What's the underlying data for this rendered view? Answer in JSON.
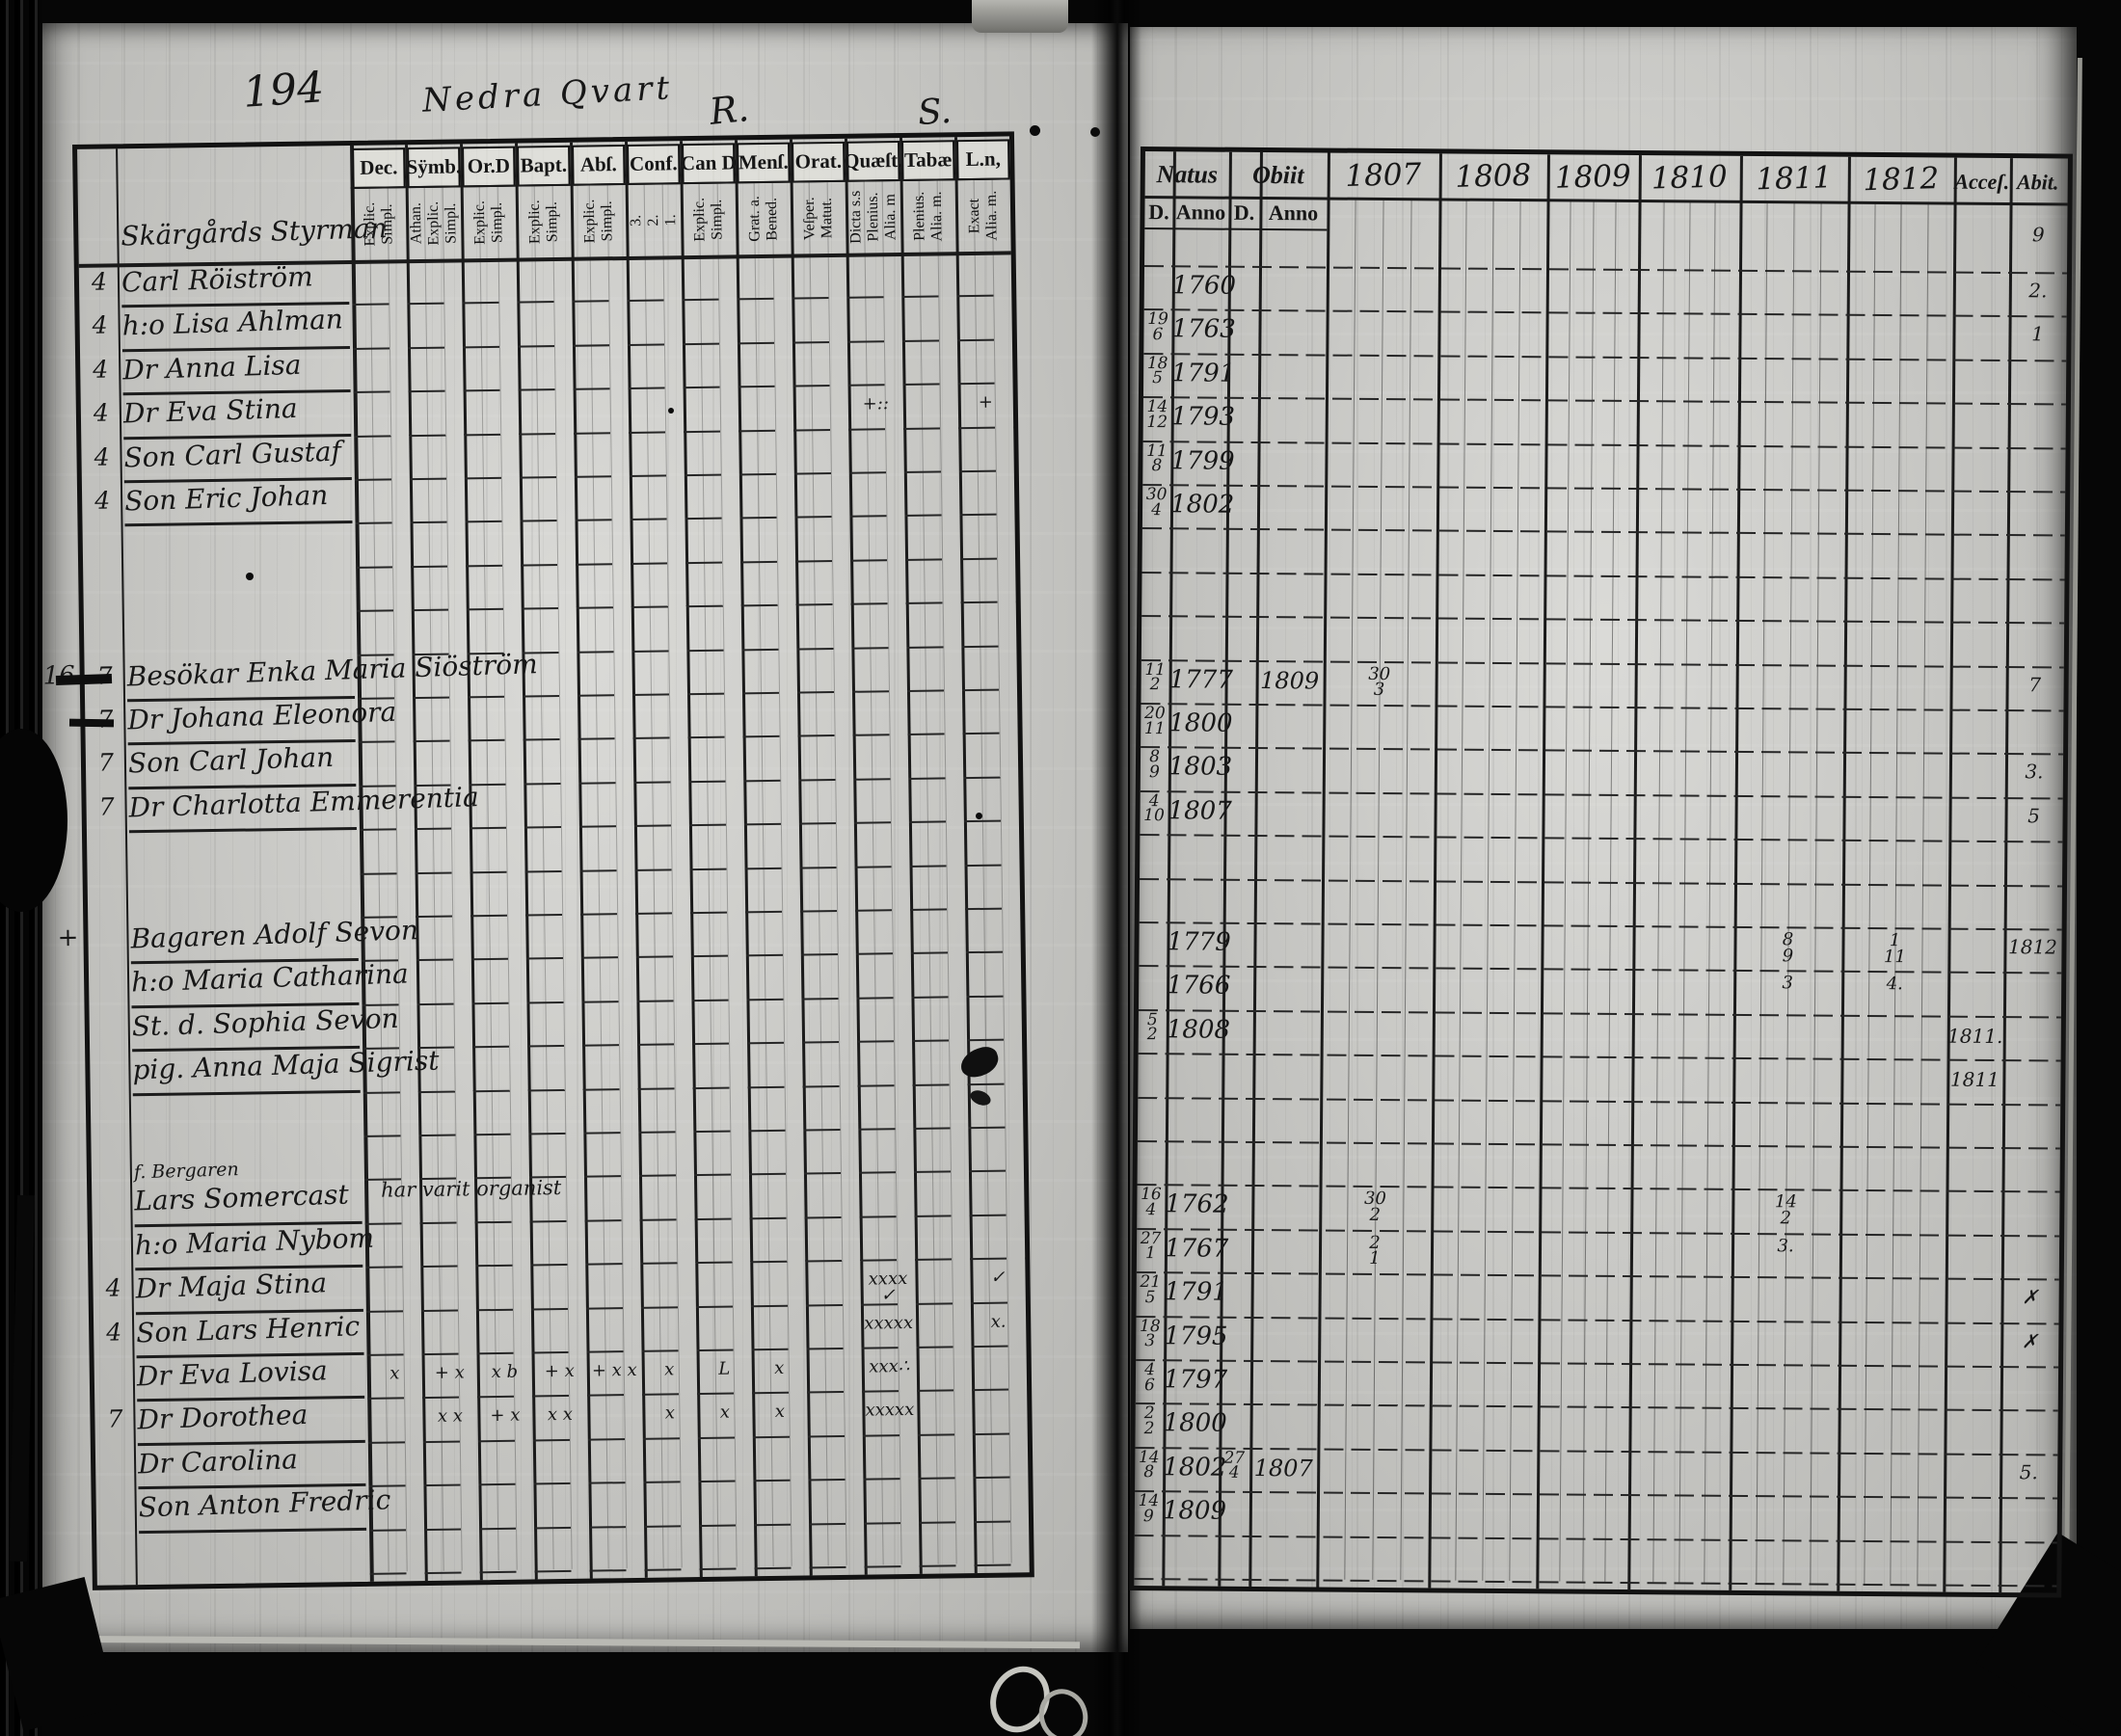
{
  "page": {
    "number": "194",
    "title_script": "Nedra Qvart",
    "mark_r": "R.",
    "mark_s": "S.",
    "ink_color": "#171717",
    "paper_color": "#d0d0cc"
  },
  "left_table": {
    "columns": [
      {
        "label": "Dec.",
        "sub": [
          "Explic.",
          "Simpl."
        ]
      },
      {
        "label": "Sÿmb.",
        "sub": [
          "Athan.",
          "Explic.",
          "Simpl."
        ]
      },
      {
        "label": "Or.D",
        "sub": [
          "Explic.",
          "Simpl."
        ]
      },
      {
        "label": "Bapt.",
        "sub": [
          "Explic.",
          "Simpl."
        ]
      },
      {
        "label": "Abſ.",
        "sub": [
          "Explic.",
          "Simpl."
        ]
      },
      {
        "label": "Conf.",
        "sub": [
          "3.",
          "2.",
          "1."
        ]
      },
      {
        "label": "Can D",
        "sub": [
          "Explic.",
          "Simpl."
        ]
      },
      {
        "label": "Menſ.",
        "sub": [
          "Grat. a.",
          "Bened."
        ]
      },
      {
        "label": "Orat.",
        "sub": [
          "Veſper.",
          "Matut."
        ]
      },
      {
        "label": "Quæſt.",
        "sub": [
          "Dicta s.s",
          "Plenius.",
          "Alia. m"
        ]
      },
      {
        "label": "Tabæ",
        "sub": [
          "Plenius.",
          "Alia. m."
        ]
      },
      {
        "label": "L.n,",
        "sub": [
          "Exact",
          "Alia. m."
        ]
      }
    ]
  },
  "right_table": {
    "natus_label": "Natus",
    "obiit_label": "Obiit",
    "d_label": "D.",
    "anno_label": "Anno",
    "years": [
      "1807",
      "1808",
      "1809",
      "1810",
      "1811",
      "1812"
    ],
    "acces_label": "Acceſ.",
    "abit_label": "Abit."
  },
  "rows": [
    {
      "name": "Skärgårds Styrman",
      "header": true,
      "ab": "9"
    },
    {
      "m": "4",
      "name": "Carl Röiström",
      "na": "1760",
      "ab": "2."
    },
    {
      "m": "4",
      "name": "h:o Lisa Ahlman",
      "nd": "19\n6",
      "na": "1763",
      "ab": "1"
    },
    {
      "m": "4",
      "name": "Dr Anna Lisa",
      "nd": "18\n5",
      "na": "1791"
    },
    {
      "m": "4",
      "name": "Dr Eva Stina",
      "nd": "14\n12",
      "na": "1793",
      "marks": {
        "9": "+::",
        "11": "+"
      }
    },
    {
      "m": "4",
      "name": "Son Carl Gustaf",
      "nd": "11\n8",
      "na": "1799"
    },
    {
      "m": "4",
      "name": "Son Eric Johan",
      "nd": "30\n4",
      "na": "1802"
    },
    {},
    {},
    {},
    {
      "m2": "16",
      "m": "7",
      "name": "Besökar Enka Maria Siöström",
      "nd": "11\n2",
      "na": "1777",
      "oa": "1809",
      "y1807": "30\n3",
      "ab": "7"
    },
    {
      "m": "7",
      "name": "Dr Johana Eleonora",
      "nd": "20\n11",
      "na": "1800"
    },
    {
      "m": "7",
      "name": "Son Carl Johan",
      "nd": "8\n9",
      "na": "1803",
      "ab": "3."
    },
    {
      "m": "7",
      "name": "Dr Charlotta Emmerentia",
      "nd": "4\n10",
      "na": "1807",
      "ab": "5"
    },
    {},
    {},
    {
      "m2": "+",
      "name": "Bagaren Adolf Sevon",
      "na": "1779",
      "y1811": "8\n9",
      "y1812": "1\n11",
      "ab": "1812"
    },
    {
      "name": "h:o Maria Catharina",
      "na": "1766",
      "y1811": "3",
      "y1812": "4."
    },
    {
      "name": "St. d. Sophia Sevon",
      "nd": "5\n2",
      "na": "1808",
      "acc": "1811."
    },
    {
      "name": "pig. Anna Maja Sigrist",
      "acc": "1811"
    },
    {},
    {
      "name": "f. Bergaren",
      "header": true,
      "small": true
    },
    {
      "name": "Lars Somercast",
      "note": "har varit organist",
      "nd": "16\n4",
      "na": "1762",
      "y1807": "30\n2",
      "y1811": "14\n2"
    },
    {
      "name": "h:o Maria Nybom",
      "nd": "27\n1",
      "na": "1767",
      "y1807": "2\n1",
      "y1811": "3."
    },
    {
      "m": "4",
      "name": "Dr Maja Stina",
      "nd": "21\n5",
      "na": "1791",
      "marks": {
        "9": "xxxx ✓",
        "11": "✓"
      },
      "ab": "✗"
    },
    {
      "m": "4",
      "name": "Son Lars Henric",
      "nd": "18\n3",
      "na": "1795",
      "marks": {
        "9": "xxxxx",
        "11": "x."
      },
      "ab": "✗"
    },
    {
      "name": "Dr Eva Lovisa",
      "nd": "4\n6",
      "na": "1797",
      "marks": {
        "0": "x",
        "1": "+ x",
        "2": "x b",
        "3": "+ x",
        "4": "+ x x",
        "5": "x",
        "6": "L",
        "7": "x",
        "9": "xxx∴"
      }
    },
    {
      "m": "7",
      "name": "Dr Dorothea",
      "nd": "2\n2",
      "na": "1800",
      "marks": {
        "1": "x x",
        "2": "+ x",
        "3": "x x",
        "5": "x",
        "6": "x",
        "7": "x",
        "9": "xxxxx"
      }
    },
    {
      "name": "Dr Carolina",
      "nd": "14\n8",
      "na": "1802",
      "od": "27\n4",
      "oa": "1807",
      "ab": "5."
    },
    {
      "name": "Son Anton Fredric",
      "nd": "14\n9",
      "na": "1809"
    },
    {}
  ]
}
